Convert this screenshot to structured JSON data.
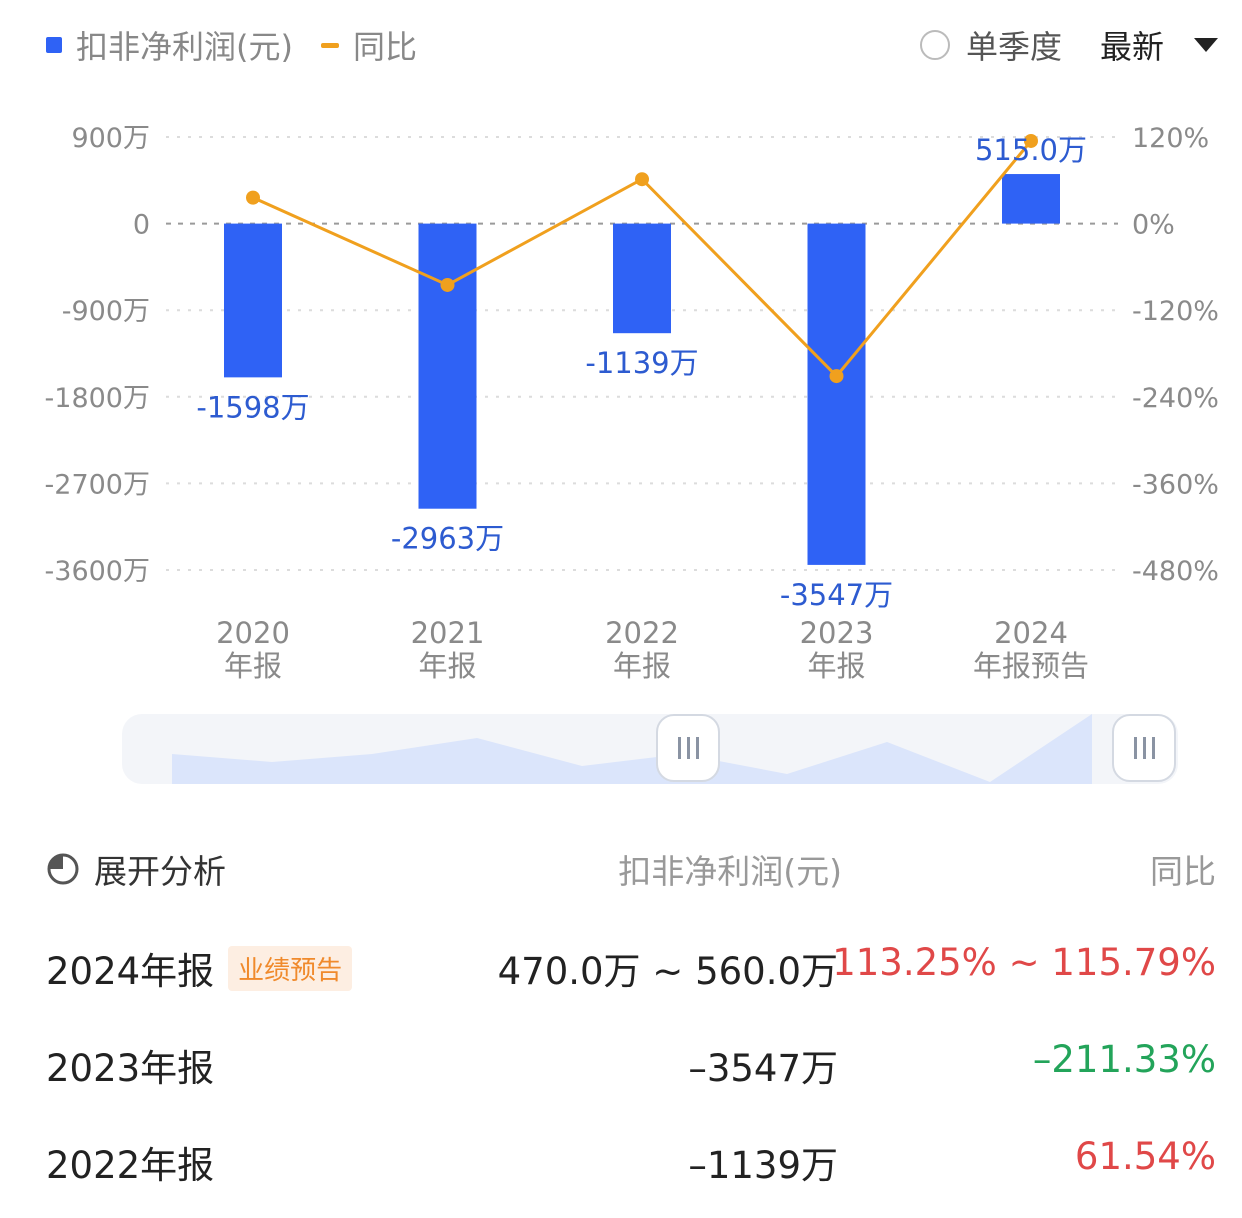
{
  "legend": {
    "bar_label": "扣非净利润(元)",
    "line_label": "同比"
  },
  "controls": {
    "quarter_label": "单季度",
    "sort_label": "最新"
  },
  "colors": {
    "bar": "#2f62f5",
    "line": "#f0a01e",
    "red": "#e04848",
    "green": "#23a45a",
    "value_label": "#2d5bd0"
  },
  "chart_data": {
    "type": "bar",
    "categories": [
      [
        "2020",
        "年报"
      ],
      [
        "2021",
        "年报"
      ],
      [
        "2022",
        "年报"
      ],
      [
        "2023",
        "年报"
      ],
      [
        "2024",
        "年报预告"
      ]
    ],
    "series": [
      {
        "name": "扣非净利润(元)",
        "type": "bar",
        "axis": "left",
        "values": [
          -1598,
          -2963,
          -1139,
          -3547,
          515
        ],
        "labels": [
          "-1598万",
          "-2963万",
          "-1139万",
          "-3547万",
          "515.0万"
        ]
      },
      {
        "name": "同比",
        "type": "line",
        "axis": "right",
        "values": [
          36,
          -85,
          61.54,
          -211.33,
          114.5
        ]
      }
    ],
    "left_axis": {
      "ticks": [
        900,
        0,
        -900,
        -1800,
        -2700,
        -3600
      ],
      "tick_labels": [
        "900万",
        "0",
        "-900万",
        "-1800万",
        "-2700万",
        "-3600万"
      ],
      "ylim": [
        -3600,
        900
      ]
    },
    "right_axis": {
      "ticks": [
        120,
        0,
        -120,
        -240,
        -360,
        -480
      ],
      "tick_labels": [
        "120%",
        "0%",
        "-120%",
        "-240%",
        "-360%",
        "-480%"
      ],
      "ylim": [
        -480,
        120
      ]
    },
    "grid": true
  },
  "table": {
    "expand_label": "展开分析",
    "col_value": "扣非净利润(元)",
    "col_yoy": "同比",
    "rows": [
      {
        "period": "2024年报",
        "badge": "业绩预告",
        "value": "470.0万 ~ 560.0万",
        "yoy": "113.25% ~ 115.79%",
        "yoy_color": "red"
      },
      {
        "period": "2023年报",
        "badge": "",
        "value": "–3547万",
        "yoy": "–211.33%",
        "yoy_color": "green"
      },
      {
        "period": "2022年报",
        "badge": "",
        "value": "–1139万",
        "yoy": "61.54%",
        "yoy_color": "red"
      }
    ]
  }
}
